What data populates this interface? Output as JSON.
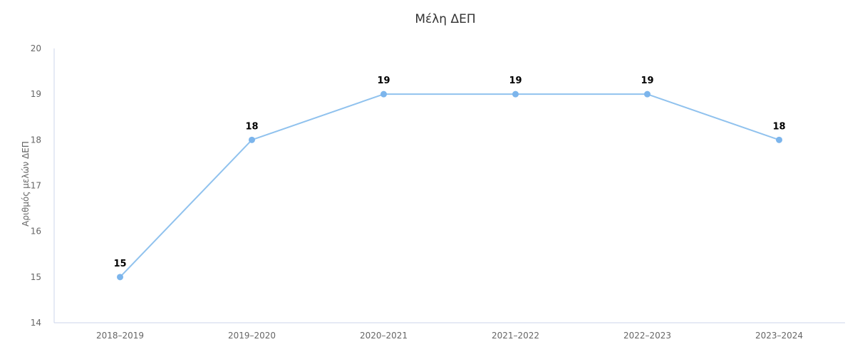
{
  "chart_data": {
    "type": "line",
    "title": "Μέλη ΔΕΠ",
    "xlabel": "",
    "ylabel": "Αριθμός μελών ΔΕΠ",
    "categories": [
      "2018–2019",
      "2019–2020",
      "2020–2021",
      "2021–2022",
      "2022–2023",
      "2023–2024"
    ],
    "series": [
      {
        "values": [
          15,
          18,
          19,
          19,
          19,
          18
        ]
      }
    ],
    "ylim": [
      14,
      20
    ],
    "yticks": [
      14,
      15,
      16,
      17,
      18,
      19,
      20
    ],
    "data_labels": true,
    "grid": false,
    "colors": {
      "line": "#90c2ee",
      "marker": "#7cb5ec",
      "axis": "#ccd6eb"
    }
  }
}
